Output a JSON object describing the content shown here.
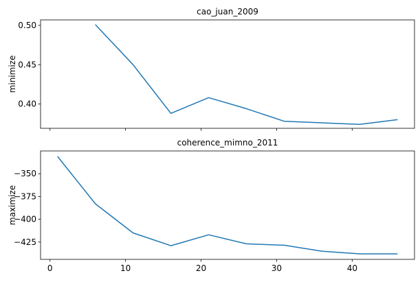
{
  "chart_data": [
    {
      "type": "line",
      "title": "cao_juan_2009",
      "ylabel": "minimize",
      "xlabel": "",
      "xlim": [
        -1.25,
        48.25
      ],
      "ylim": [
        0.369,
        0.507
      ],
      "x": [
        6,
        11,
        16,
        21,
        26,
        31,
        36,
        41,
        46
      ],
      "values": [
        0.501,
        0.45,
        0.388,
        0.408,
        0.394,
        0.378,
        0.376,
        0.374,
        0.38
      ],
      "xticks": [
        0,
        10,
        20,
        30,
        40
      ],
      "yticks": [
        0.4,
        0.45,
        0.5
      ],
      "ytick_labels": [
        "0.40",
        "0.45",
        "0.50"
      ],
      "show_xtick_labels": false,
      "line_color": "#1f77b4"
    },
    {
      "type": "line",
      "title": "coherence_mimno_2011",
      "ylabel": "maximize",
      "xlabel": "",
      "xlim": [
        -1.25,
        48.25
      ],
      "ylim": [
        -444,
        -325
      ],
      "x": [
        1,
        6,
        11,
        16,
        21,
        26,
        31,
        36,
        41,
        46
      ],
      "values": [
        -331,
        -383,
        -415,
        -429,
        -417,
        -427,
        -428.5,
        -435,
        -438,
        -438
      ],
      "xticks": [
        0,
        10,
        20,
        30,
        40
      ],
      "xtick_labels": [
        "0",
        "10",
        "20",
        "30",
        "40"
      ],
      "yticks": [
        -425,
        -400,
        -375,
        -350
      ],
      "ytick_labels": [
        "−425",
        "−400",
        "−375",
        "−350"
      ],
      "show_xtick_labels": true,
      "line_color": "#1f77b4"
    }
  ]
}
